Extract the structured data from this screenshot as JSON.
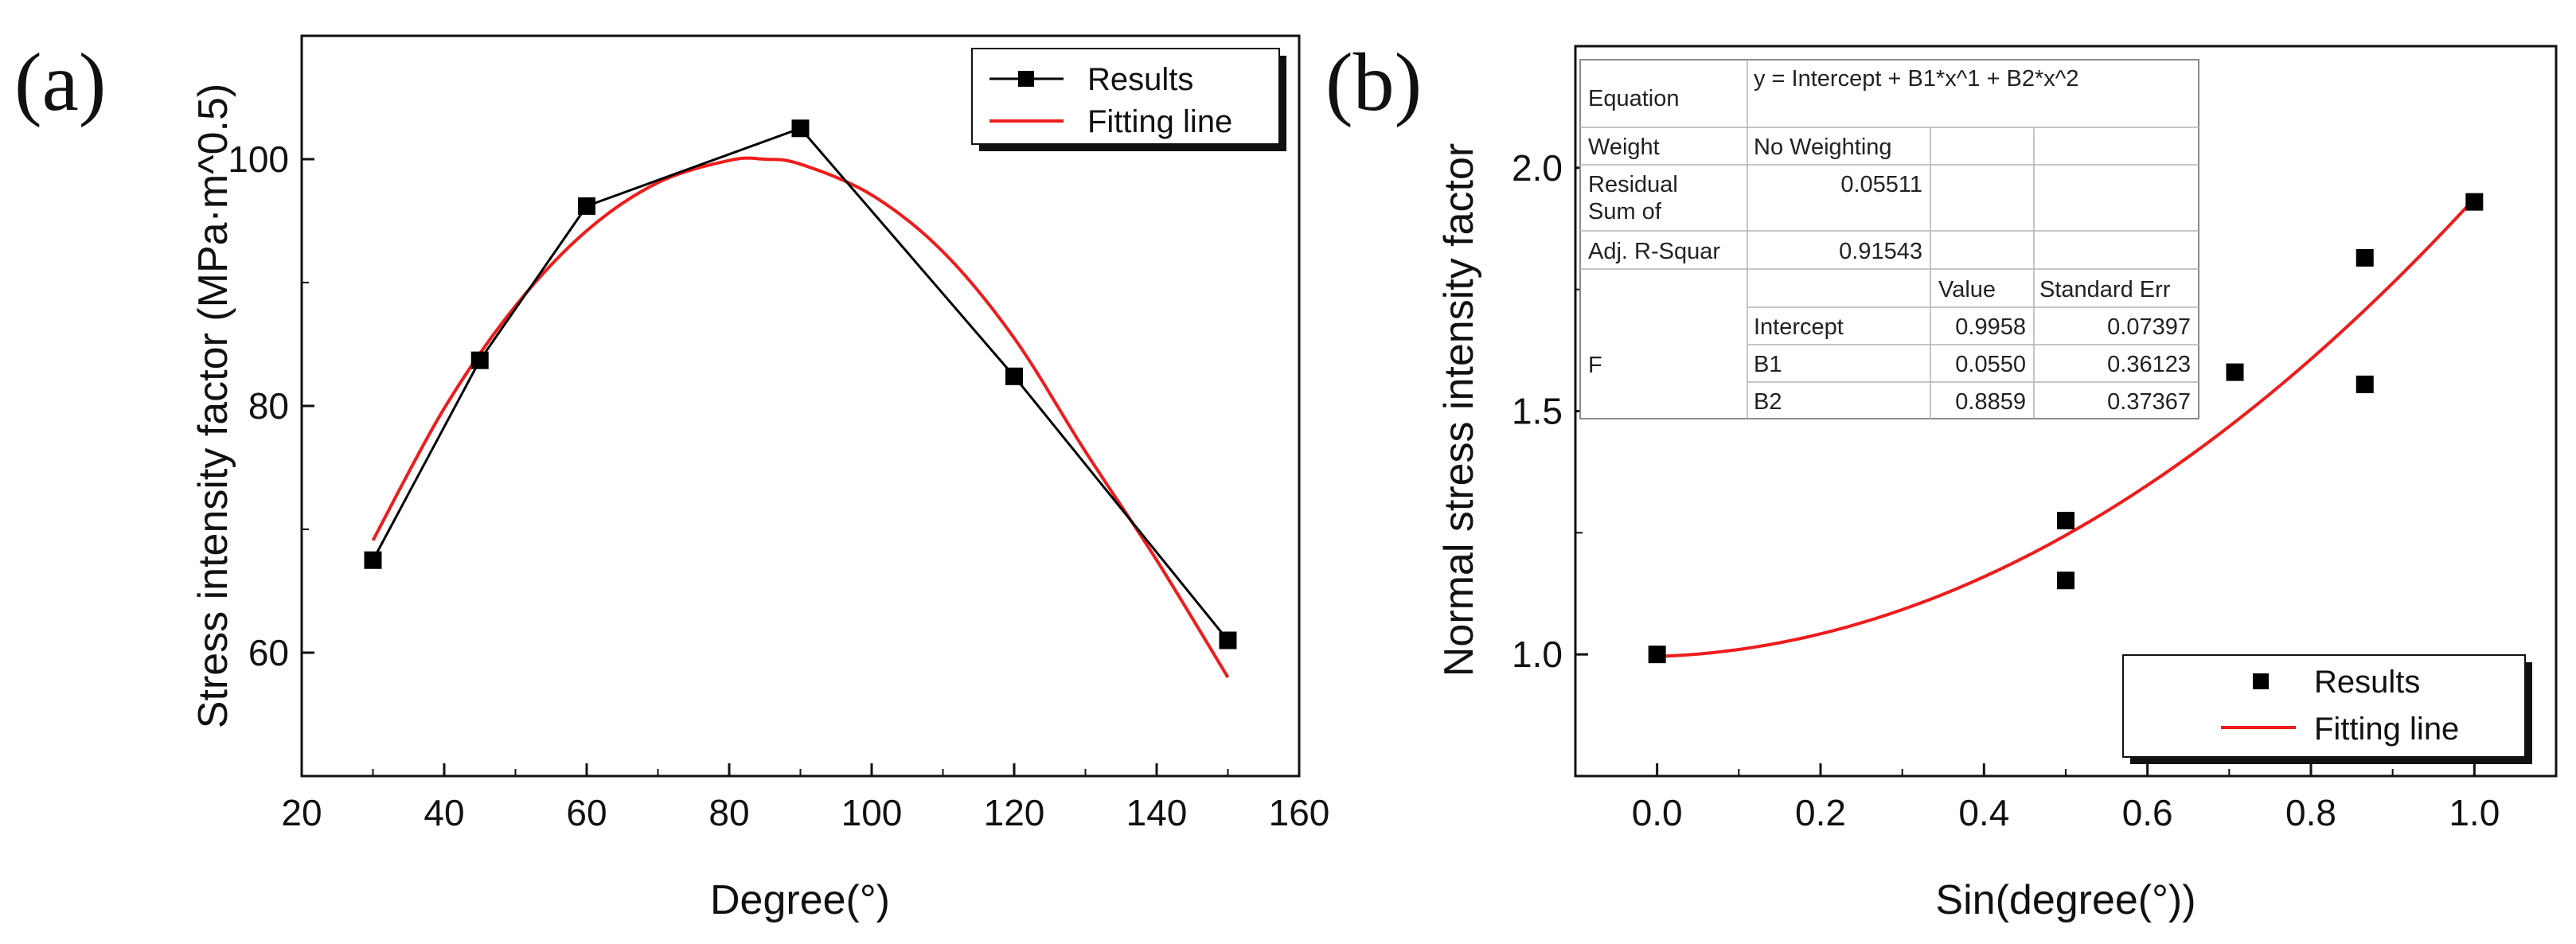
{
  "chart_data": [
    {
      "type": "line",
      "panel_label": "(a)",
      "title": "",
      "xlabel": "Degree(°)",
      "ylabel": "Stress intensity factor (MPa·m^0.5)",
      "xlim": [
        20,
        160
      ],
      "ylim": [
        50,
        110
      ],
      "xticks": [
        20,
        40,
        60,
        80,
        100,
        120,
        140,
        160
      ],
      "yticks": [
        60,
        80,
        100
      ],
      "xtick_labels": [
        "20",
        "40",
        "60",
        "80",
        "100",
        "120",
        "140",
        "160"
      ],
      "ytick_labels": [
        "60",
        "80",
        "100"
      ],
      "grid": false,
      "legend_position": "top-right",
      "series": [
        {
          "name": "Results",
          "kind": "line-marker",
          "color": "#000000",
          "x": [
            30,
            45,
            60,
            90,
            120,
            150
          ],
          "y": [
            67.5,
            83.7,
            96.2,
            102.5,
            82.4,
            61.0
          ]
        },
        {
          "name": "Fitting line",
          "kind": "curve",
          "color": "#ee1c1c",
          "x": [
            30,
            40,
            50,
            60,
            70,
            80,
            85,
            90,
            100,
            110,
            120,
            130,
            140,
            150
          ],
          "y": [
            69.1,
            79.8,
            88.1,
            94.2,
            98.1,
            99.9,
            100.0,
            99.6,
            97.1,
            92.5,
            85.5,
            76.3,
            67.5,
            58.0
          ]
        }
      ]
    },
    {
      "type": "scatter",
      "panel_label": "(b)",
      "title": "",
      "xlabel": "Sin(degree(°))",
      "ylabel": "Normal stress intensity factor",
      "xlim": [
        -0.1,
        1.1
      ],
      "ylim": [
        0.75,
        2.25
      ],
      "xticks": [
        0.0,
        0.2,
        0.4,
        0.6,
        0.8,
        1.0
      ],
      "yticks": [
        1.0,
        1.5,
        2.0
      ],
      "xtick_labels": [
        "0.0",
        "0.2",
        "0.4",
        "0.6",
        "0.8",
        "1.0"
      ],
      "ytick_labels": [
        "1.0",
        "1.5",
        "2.0"
      ],
      "grid": false,
      "legend_position": "bottom-right",
      "series": [
        {
          "name": "Results",
          "kind": "marker",
          "color": "#000000",
          "x": [
            0.0,
            0.5,
            0.5,
            0.707,
            0.866,
            0.866,
            1.0
          ],
          "y": [
            1.0,
            1.275,
            1.152,
            1.58,
            1.815,
            1.555,
            1.93
          ]
        },
        {
          "name": "Fitting line",
          "kind": "fit",
          "color": "#ee1c1c",
          "intercept": 0.9958,
          "b1": 0.055,
          "b2": 0.8859,
          "x_range": [
            0.0,
            1.0
          ]
        }
      ],
      "fit_table": {
        "rows": [
          [
            "Equation",
            "y = Intercept + B1*x^1 + B2*x^2",
            "",
            ""
          ],
          [
            "Weight",
            "No Weighting",
            "",
            ""
          ],
          [
            "Residual Sum of",
            "0.05511",
            "",
            ""
          ],
          [
            "Adj. R-Squar",
            "0.91543",
            "",
            ""
          ],
          [
            "",
            "",
            "Value",
            "Standard Err"
          ],
          [
            "F",
            "Intercept",
            "0.9958",
            "0.07397"
          ],
          [
            "",
            "B1",
            "0.0550",
            "0.36123"
          ],
          [
            "",
            "B2",
            "0.8859",
            "0.37367"
          ]
        ]
      }
    }
  ]
}
